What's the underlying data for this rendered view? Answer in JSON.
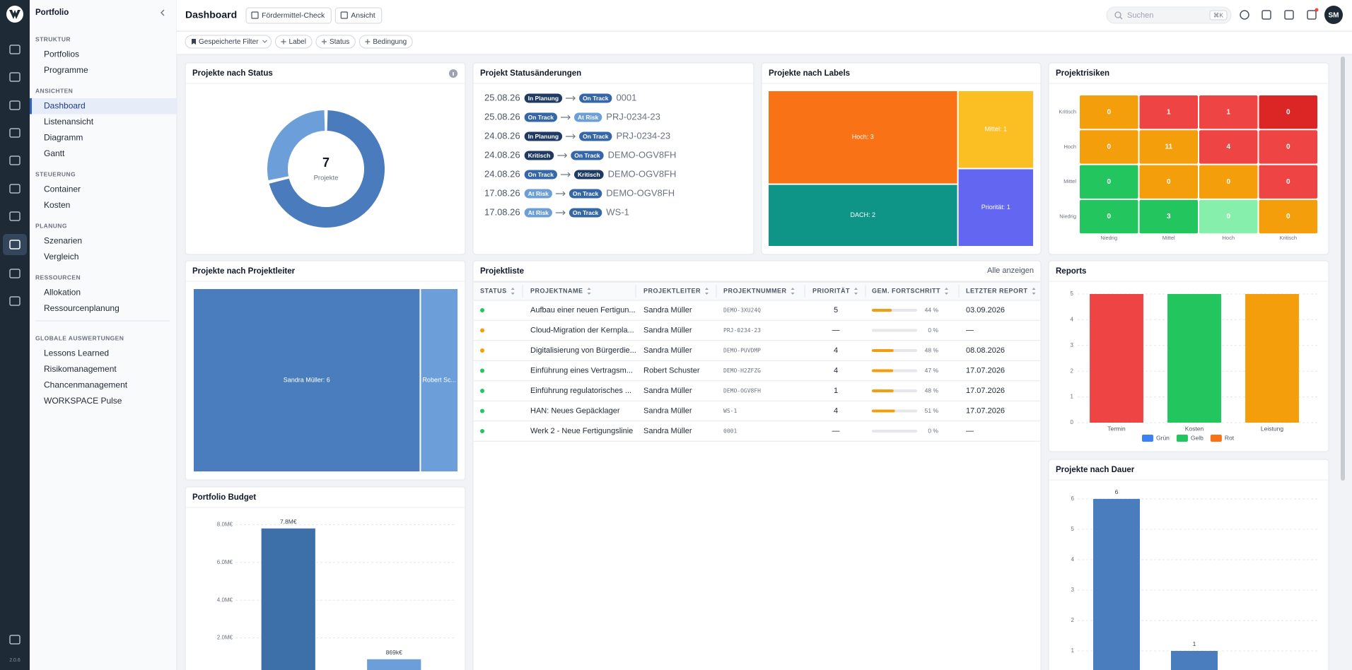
{
  "header": {
    "app": "Portfolio",
    "title": "Dashboard",
    "buttons": [
      "Fördermittel-Check",
      "Ansicht"
    ],
    "search": "Suchen",
    "shortcut": "⌘K",
    "avatar": "SM",
    "version": "2.0.6"
  },
  "filters": [
    "Gespeicherte Filter",
    "Label",
    "Status",
    "Bedingung"
  ],
  "sidebar": {
    "active": [
      1,
      0
    ],
    "sections": [
      {
        "title": "STRUKTUR",
        "items": [
          "Portfolios",
          "Programme"
        ]
      },
      {
        "title": "ANSICHTEN",
        "items": [
          "Dashboard",
          "Listenansicht",
          "Diagramm",
          "Gantt"
        ]
      },
      {
        "title": "STEUERUNG",
        "items": [
          "Container",
          "Kosten"
        ]
      },
      {
        "title": "PLANUNG",
        "items": [
          "Szenarien",
          "Vergleich"
        ]
      },
      {
        "title": "RESSOURCEN",
        "items": [
          "Allokation",
          "Ressourcenplanung"
        ]
      },
      {
        "title": "GLOBALE AUSWERTUNGEN",
        "items": [
          "Lessons Learned",
          "Risikomanagement",
          "Chancenmanagement",
          "WORKSPACE Pulse"
        ]
      }
    ]
  },
  "status_changes": {
    "title": "Projekt Statusänderungen",
    "badge_colors": {
      "In Planung": "#1f3b63",
      "On Track": "#3466a8",
      "At Risk": "#6c9fd8",
      "Kritisch": "#1f3b63"
    },
    "rows": [
      {
        "date": "25.08.26",
        "from": "In Planung",
        "to": "On Track",
        "project": "0001"
      },
      {
        "date": "25.08.26",
        "from": "On Track",
        "to": "At Risk",
        "project": "PRJ-0234-23"
      },
      {
        "date": "24.08.26",
        "from": "In Planung",
        "to": "On Track",
        "project": "PRJ-0234-23"
      },
      {
        "date": "24.08.26",
        "from": "Kritisch",
        "to": "On Track",
        "project": "DEMO-OGV8FH"
      },
      {
        "date": "24.08.26",
        "from": "On Track",
        "to": "Kritisch",
        "project": "DEMO-OGV8FH"
      },
      {
        "date": "17.08.26",
        "from": "At Risk",
        "to": "On Track",
        "project": "DEMO-OGV8FH"
      },
      {
        "date": "17.08.26",
        "from": "At Risk",
        "to": "On Track",
        "project": "WS-1"
      }
    ]
  },
  "project_list": {
    "title": "Projektliste",
    "link": "Alle anzeigen",
    "columns": [
      "STATUS",
      "PROJEKTNAME",
      "PROJEKTLEITER",
      "PROJEKTNUMMER",
      "PRIORITÄT",
      "GEM. FORTSCHRITT",
      "LETZTER REPORT"
    ],
    "rows": [
      {
        "status_color": "#22c55e",
        "name": "Aufbau einer neuen Fertigun...",
        "leader": "Sandra Müller",
        "number": "DEMO-3XU24Q",
        "priority": "5",
        "progress": 44,
        "progress_label": "44 %",
        "report": "03.09.2026"
      },
      {
        "status_color": "#f59e0b",
        "name": "Cloud-Migration der Kernpla...",
        "leader": "Sandra Müller",
        "number": "PRJ-0234-23",
        "priority": "—",
        "progress": 0,
        "progress_label": "0 %",
        "report": "—"
      },
      {
        "status_color": "#f59e0b",
        "name": "Digitalisierung von Bürgerdie...",
        "leader": "Sandra Müller",
        "number": "DEMO-PUVDMP",
        "priority": "4",
        "progress": 48,
        "progress_label": "48 %",
        "report": "08.08.2026"
      },
      {
        "status_color": "#22c55e",
        "name": "Einführung eines Vertragsm...",
        "leader": "Robert Schuster",
        "number": "DEMO-H2ZFZG",
        "priority": "4",
        "progress": 47,
        "progress_label": "47 %",
        "report": "17.07.2026"
      },
      {
        "status_color": "#22c55e",
        "name": "Einführung regulatorisches ...",
        "leader": "Sandra Müller",
        "number": "DEMO-OGV8FH",
        "priority": "1",
        "progress": 48,
        "progress_label": "48 %",
        "report": "17.07.2026"
      },
      {
        "status_color": "#22c55e",
        "name": "HAN: Neues Gepäcklager",
        "leader": "Sandra Müller",
        "number": "WS-1",
        "priority": "4",
        "progress": 51,
        "progress_label": "51 %",
        "report": "17.07.2026"
      },
      {
        "status_color": "#22c55e",
        "name": "Werk 2 - Neue Fertigungslinie",
        "leader": "Sandra Müller",
        "number": "0001",
        "priority": "—",
        "progress": 0,
        "progress_label": "0 %",
        "report": "—"
      }
    ]
  },
  "chart_data": [
    {
      "type": "pie",
      "title": "Projekte nach Status",
      "values": [
        5,
        2
      ],
      "colors": [
        "#4a7cbd",
        "#6c9fd9"
      ],
      "center_value": 7,
      "center_label": "Projekte"
    },
    {
      "type": "treemap",
      "title": "Projekte nach Labels",
      "labels": [
        "Hoch: 3",
        "DACH: 2",
        "Mittel: 1",
        "Priorität: 1"
      ],
      "values": [
        3,
        2,
        1,
        1
      ],
      "colors": [
        "#f97316",
        "#0f9488",
        "#fbbf24",
        "#6366f1"
      ]
    },
    {
      "type": "heatmap",
      "title": "Projektrisiken",
      "x_categories": [
        "Niedrig",
        "Mittel",
        "Hoch",
        "Kritisch"
      ],
      "y_categories": [
        "Kritisch",
        "Hoch",
        "Mittel",
        "Niedrig"
      ],
      "values": [
        [
          0,
          1,
          1,
          0
        ],
        [
          0,
          11,
          4,
          0
        ],
        [
          0,
          0,
          0,
          0
        ],
        [
          0,
          3,
          0,
          0
        ]
      ],
      "colors": [
        [
          "#f59e0b",
          "#ef4444",
          "#ef4444",
          "#dc2626"
        ],
        [
          "#f59e0b",
          "#f59e0b",
          "#ef4444",
          "#ef4444"
        ],
        [
          "#22c55e",
          "#f59e0b",
          "#f59e0b",
          "#ef4444"
        ],
        [
          "#22c55e",
          "#22c55e",
          "#86efac",
          "#f59e0b"
        ]
      ]
    },
    {
      "type": "treemap",
      "title": "Projekte nach Projektleiter",
      "labels": [
        "Sandra Müller: 6",
        "Robert Sc..."
      ],
      "values": [
        6,
        1
      ],
      "colors": [
        "#4a7dbd",
        "#6c9fd9"
      ]
    },
    {
      "type": "bar",
      "title": "Reports",
      "categories": [
        "Termin",
        "Kosten",
        "Leistung"
      ],
      "values": [
        5,
        5,
        5
      ],
      "colors": [
        "#ef4444",
        "#22c55e",
        "#f59e0b"
      ],
      "ylim": [
        0,
        5
      ],
      "yticks": [
        0,
        1,
        2,
        3,
        4,
        5
      ],
      "grid": true,
      "legend_position": "bottom",
      "legend": [
        {
          "name": "Grün",
          "color": "#3b82f6"
        },
        {
          "name": "Gelb",
          "color": "#22c55e"
        },
        {
          "name": "Rot",
          "color": "#f97316"
        }
      ]
    },
    {
      "type": "bar",
      "title": "Portfolio Budget",
      "categories": [
        null,
        null
      ],
      "values": [
        7800000,
        869000
      ],
      "value_labels": [
        "7.8M€",
        "869k€"
      ],
      "colors": [
        "#3d6fa8",
        "#6c9fd9"
      ],
      "ylim": [
        0,
        8400000
      ],
      "yticks": [
        {
          "value": 2000000,
          "label": "2.0M€"
        },
        {
          "value": 4000000,
          "label": "4.0M€"
        },
        {
          "value": 6000000,
          "label": "6.0M€"
        },
        {
          "value": 8000000,
          "label": "8.0M€"
        }
      ],
      "grid": true
    },
    {
      "type": "bar",
      "title": "Projekte nach Dauer",
      "categories": [
        null,
        null
      ],
      "values": [
        6,
        1
      ],
      "colors": [
        "#4a7dbd",
        "#4a7dbd"
      ],
      "show_values": true,
      "ylim": [
        0,
        6.3
      ],
      "yticks": [
        1,
        2,
        3,
        4,
        5,
        6
      ],
      "grid": true
    }
  ]
}
